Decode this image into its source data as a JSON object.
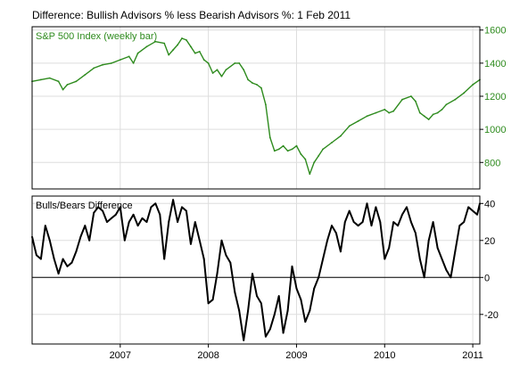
{
  "title": "Difference: Bullish Advisors % less Bearish Advisors %: 1 Feb 2011",
  "colors": {
    "price": "#2e8b1e",
    "diff": "#000000",
    "grid": "#dddddd",
    "frame": "#000000",
    "zero": "#000000"
  },
  "chart_data": [
    {
      "type": "line",
      "title": "S&P 500 Index (weekly bar)",
      "axis_side": "right",
      "ylim": [
        640,
        1620
      ],
      "yticks": [
        "1600",
        "1400",
        "1200",
        "1000",
        "800"
      ],
      "ytick_values": [
        1600,
        1400,
        1200,
        1000,
        800
      ],
      "grid": true,
      "series": [
        {
          "name": "S&P 500 Index (weekly bar)",
          "x": [
            2006.0,
            2006.1,
            2006.2,
            2006.3,
            2006.35,
            2006.4,
            2006.5,
            2006.6,
            2006.7,
            2006.8,
            2006.9,
            2007.0,
            2007.1,
            2007.15,
            2007.2,
            2007.3,
            2007.4,
            2007.5,
            2007.55,
            2007.6,
            2007.65,
            2007.7,
            2007.75,
            2007.8,
            2007.85,
            2007.9,
            2007.95,
            2008.0,
            2008.05,
            2008.1,
            2008.15,
            2008.2,
            2008.3,
            2008.35,
            2008.4,
            2008.45,
            2008.5,
            2008.55,
            2008.6,
            2008.65,
            2008.7,
            2008.75,
            2008.8,
            2008.85,
            2008.9,
            2008.95,
            2009.0,
            2009.05,
            2009.1,
            2009.15,
            2009.2,
            2009.25,
            2009.3,
            2009.4,
            2009.5,
            2009.6,
            2009.7,
            2009.8,
            2009.9,
            2010.0,
            2010.05,
            2010.1,
            2010.2,
            2010.3,
            2010.35,
            2010.4,
            2010.45,
            2010.5,
            2010.55,
            2010.6,
            2010.65,
            2010.7,
            2010.8,
            2010.9,
            2011.0,
            2011.08
          ],
          "y": [
            1290,
            1300,
            1310,
            1290,
            1240,
            1270,
            1290,
            1330,
            1370,
            1390,
            1400,
            1420,
            1440,
            1400,
            1460,
            1500,
            1530,
            1520,
            1450,
            1480,
            1510,
            1550,
            1540,
            1500,
            1460,
            1470,
            1420,
            1400,
            1340,
            1360,
            1320,
            1360,
            1400,
            1400,
            1360,
            1300,
            1280,
            1270,
            1250,
            1150,
            950,
            870,
            880,
            900,
            870,
            880,
            900,
            850,
            820,
            730,
            800,
            840,
            880,
            920,
            960,
            1020,
            1050,
            1080,
            1100,
            1120,
            1100,
            1110,
            1180,
            1200,
            1170,
            1100,
            1080,
            1060,
            1090,
            1100,
            1120,
            1150,
            1180,
            1220,
            1270,
            1300
          ]
        }
      ]
    },
    {
      "type": "line",
      "title": "Bulls/Bears Difference",
      "axis_side": "right",
      "ylim": [
        -36,
        44
      ],
      "yticks": [
        "40",
        "20",
        "0",
        "-20"
      ],
      "ytick_values": [
        40,
        20,
        0,
        -20
      ],
      "zero_line": 0,
      "grid": true,
      "series": [
        {
          "name": "Bulls/Bears Difference",
          "x": [
            2006.0,
            2006.05,
            2006.1,
            2006.15,
            2006.2,
            2006.25,
            2006.3,
            2006.35,
            2006.4,
            2006.45,
            2006.5,
            2006.55,
            2006.6,
            2006.65,
            2006.7,
            2006.75,
            2006.8,
            2006.85,
            2006.9,
            2006.95,
            2007.0,
            2007.05,
            2007.1,
            2007.15,
            2007.2,
            2007.25,
            2007.3,
            2007.35,
            2007.4,
            2007.45,
            2007.5,
            2007.55,
            2007.6,
            2007.65,
            2007.7,
            2007.75,
            2007.8,
            2007.85,
            2007.9,
            2007.95,
            2008.0,
            2008.05,
            2008.1,
            2008.15,
            2008.2,
            2008.25,
            2008.3,
            2008.35,
            2008.4,
            2008.45,
            2008.5,
            2008.55,
            2008.6,
            2008.65,
            2008.7,
            2008.75,
            2008.8,
            2008.85,
            2008.9,
            2008.95,
            2009.0,
            2009.05,
            2009.1,
            2009.15,
            2009.2,
            2009.25,
            2009.3,
            2009.35,
            2009.4,
            2009.45,
            2009.5,
            2009.55,
            2009.6,
            2009.65,
            2009.7,
            2009.75,
            2009.8,
            2009.85,
            2009.9,
            2009.95,
            2010.0,
            2010.05,
            2010.1,
            2010.15,
            2010.2,
            2010.25,
            2010.3,
            2010.35,
            2010.4,
            2010.45,
            2010.5,
            2010.55,
            2010.6,
            2010.65,
            2010.7,
            2010.75,
            2010.8,
            2010.85,
            2010.9,
            2010.95,
            2011.0,
            2011.05,
            2011.08
          ],
          "y": [
            22,
            12,
            10,
            28,
            20,
            10,
            2,
            10,
            6,
            8,
            14,
            22,
            28,
            20,
            35,
            38,
            36,
            30,
            32,
            34,
            38,
            20,
            30,
            34,
            28,
            32,
            30,
            38,
            40,
            34,
            10,
            30,
            42,
            30,
            38,
            36,
            18,
            30,
            20,
            10,
            -14,
            -12,
            2,
            20,
            12,
            8,
            -8,
            -18,
            -34,
            -18,
            2,
            -10,
            -14,
            -32,
            -28,
            -20,
            -10,
            -30,
            -18,
            6,
            -6,
            -12,
            -24,
            -18,
            -6,
            0,
            10,
            20,
            28,
            24,
            14,
            30,
            36,
            30,
            28,
            30,
            40,
            28,
            38,
            30,
            10,
            16,
            30,
            28,
            34,
            38,
            30,
            24,
            10,
            0,
            20,
            30,
            16,
            10,
            4,
            0,
            14,
            28,
            30,
            38,
            36,
            34,
            40
          ]
        }
      ]
    }
  ],
  "x_axis": {
    "labels": [
      "2007",
      "2008",
      "2009",
      "2010",
      "2011"
    ],
    "label_values": [
      2007,
      2008,
      2009,
      2010,
      2011
    ],
    "range": [
      2006.0,
      2011.08
    ]
  }
}
